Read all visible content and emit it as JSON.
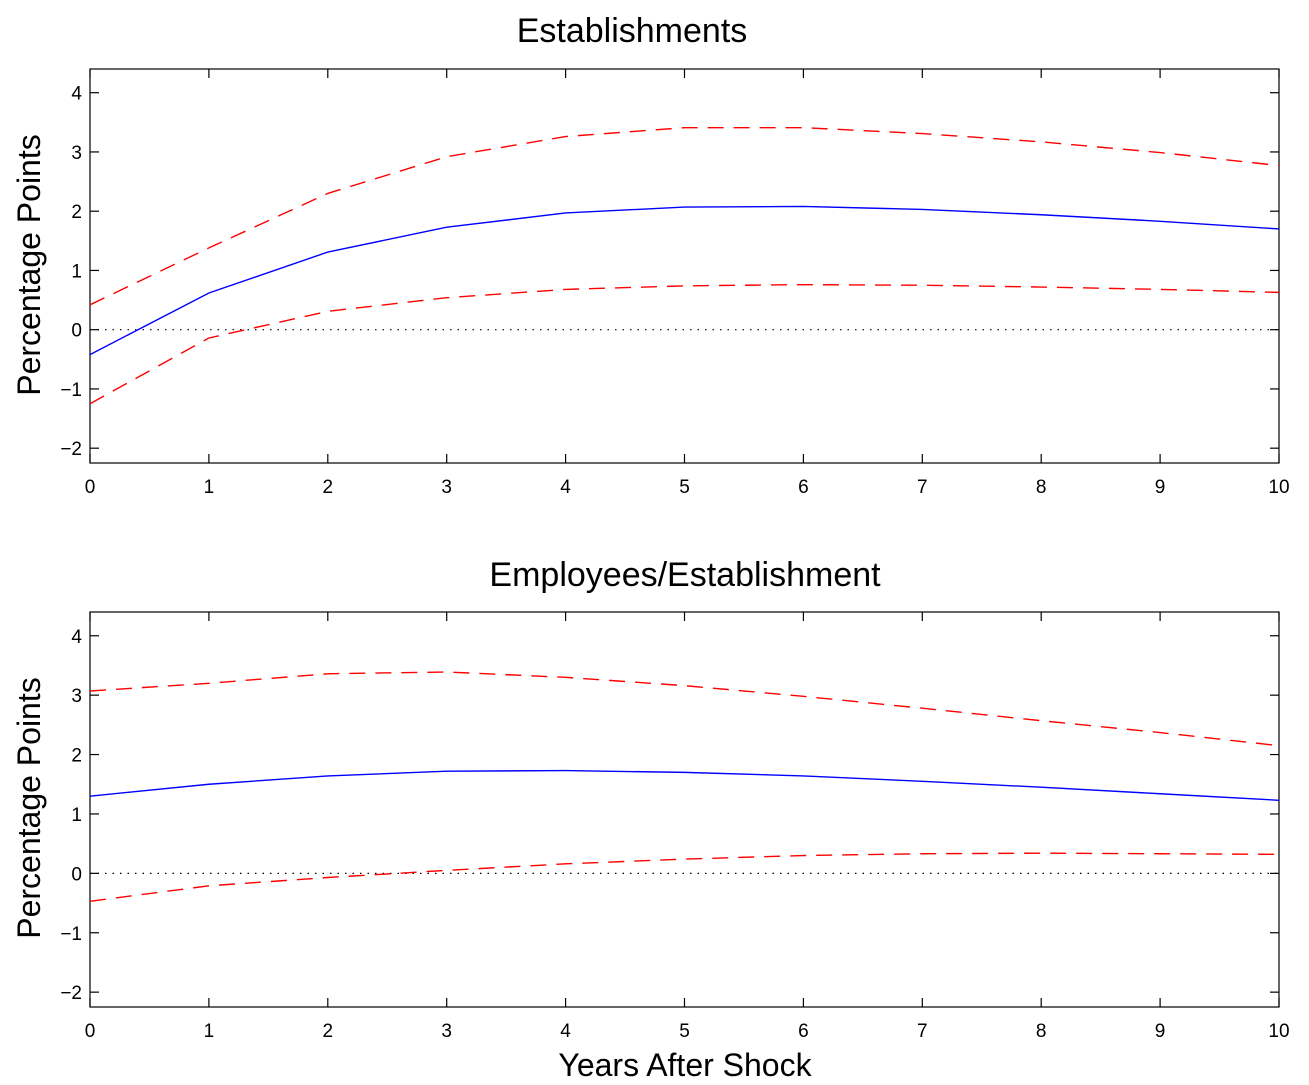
{
  "figure": {
    "xlabel": "Years After Shock"
  },
  "chart_data": [
    {
      "type": "line",
      "title": "Establishments",
      "xlabel": "",
      "ylabel": "Percentage Points",
      "xlim": [
        0,
        10
      ],
      "ylim": [
        -2.25,
        4.4
      ],
      "xticks": [
        0,
        1,
        2,
        3,
        4,
        5,
        6,
        7,
        8,
        9,
        10
      ],
      "yticks": [
        -2,
        -1,
        0,
        1,
        2,
        3,
        4
      ],
      "ytick_labels": [
        "−2",
        "−1",
        "0",
        "1",
        "2",
        "3",
        "4"
      ],
      "reference_line": 0,
      "x": [
        0,
        1,
        2,
        3,
        4,
        5,
        6,
        7,
        8,
        9,
        10
      ],
      "series": [
        {
          "role": "estimate",
          "color": "#0000ff",
          "style": "solid",
          "values": [
            -0.42,
            0.62,
            1.31,
            1.73,
            1.97,
            2.07,
            2.08,
            2.03,
            1.94,
            1.83,
            1.7
          ]
        },
        {
          "role": "upper",
          "color": "#ff0000",
          "style": "dashed",
          "values": [
            0.42,
            1.38,
            2.3,
            2.92,
            3.26,
            3.41,
            3.41,
            3.31,
            3.17,
            2.99,
            2.77
          ]
        },
        {
          "role": "lower",
          "color": "#ff0000",
          "style": "dashed",
          "values": [
            -1.25,
            -0.14,
            0.31,
            0.54,
            0.68,
            0.74,
            0.76,
            0.75,
            0.72,
            0.68,
            0.63
          ]
        }
      ]
    },
    {
      "type": "line",
      "title": "Employees/Establishment",
      "xlabel": "Years After Shock",
      "ylabel": "Percentage Points",
      "xlim": [
        0,
        10
      ],
      "ylim": [
        -2.25,
        4.4
      ],
      "xticks": [
        0,
        1,
        2,
        3,
        4,
        5,
        6,
        7,
        8,
        9,
        10
      ],
      "yticks": [
        -2,
        -1,
        0,
        1,
        2,
        3,
        4
      ],
      "ytick_labels": [
        "−2",
        "−1",
        "0",
        "1",
        "2",
        "3",
        "4"
      ],
      "reference_line": 0,
      "x": [
        0,
        1,
        2,
        3,
        4,
        5,
        6,
        7,
        8,
        9,
        10
      ],
      "series": [
        {
          "role": "estimate",
          "color": "#0000ff",
          "style": "solid",
          "values": [
            1.3,
            1.5,
            1.64,
            1.72,
            1.73,
            1.7,
            1.64,
            1.55,
            1.45,
            1.34,
            1.23
          ]
        },
        {
          "role": "upper",
          "color": "#ff0000",
          "style": "dashed",
          "values": [
            3.07,
            3.2,
            3.36,
            3.39,
            3.3,
            3.16,
            2.98,
            2.78,
            2.57,
            2.37,
            2.15
          ]
        },
        {
          "role": "lower",
          "color": "#ff0000",
          "style": "dashed",
          "values": [
            -0.47,
            -0.21,
            -0.07,
            0.05,
            0.16,
            0.24,
            0.3,
            0.33,
            0.34,
            0.33,
            0.32
          ]
        }
      ]
    }
  ]
}
